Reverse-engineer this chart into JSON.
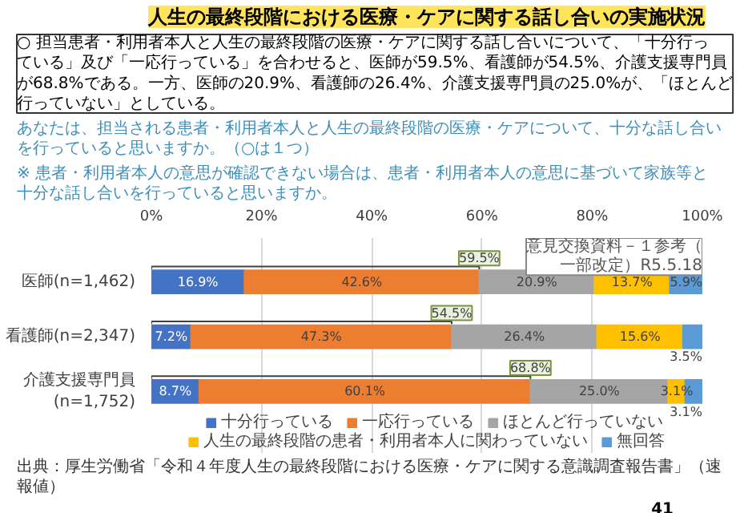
{
  "chart_data": {
    "type": "bar",
    "orientation": "horizontal",
    "stacked": true,
    "title": "人生の最終段階における医療・ケアに関する話し合いの実施状況",
    "subtitle": "あなたは、担当される患者・利用者本人と人生の最終段階の医療・ケアについて、十分な話し合いを行っていると思いますか。（○は１つ）",
    "categories": [
      "医師(n=1,462)",
      "看護師(n=2,347)",
      "介護支援専門員\n(n=1,752)"
    ],
    "series": [
      {
        "name": "十分行っている",
        "color": "#4472c4",
        "values": [
          16.9,
          7.2,
          8.7
        ],
        "value_labels": [
          "16.9%",
          "7.2%",
          "8.7%"
        ]
      },
      {
        "name": "一応行っている",
        "color": "#ed7d31",
        "values": [
          42.6,
          47.3,
          60.1
        ],
        "value_labels": [
          "42.6%",
          "47.3%",
          "60.1%"
        ]
      },
      {
        "name": "ほとんど行っていない",
        "color": "#a5a5a5",
        "values": [
          20.9,
          26.4,
          25.0
        ],
        "value_labels": [
          "20.9%",
          "26.4%",
          "25.0%"
        ]
      },
      {
        "name": "人生の最終段階の患者・利用者本人に関わっていない",
        "color": "#ffc000",
        "values": [
          13.7,
          15.6,
          3.1
        ],
        "value_labels": [
          "13.7%",
          "15.6%",
          "3.1%"
        ]
      },
      {
        "name": "無回答",
        "color": "#5b9bd5",
        "values": [
          5.9,
          3.5,
          3.1
        ],
        "value_labels": [
          "5.9%",
          "3.5%",
          "3.1%"
        ]
      }
    ],
    "xlim": [
      0,
      100
    ],
    "xticks": [
      {
        "value": 0,
        "label": "0%"
      },
      {
        "value": 20,
        "label": "20%"
      },
      {
        "value": 40,
        "label": "40%"
      },
      {
        "value": 60,
        "label": "60%"
      },
      {
        "value": 80,
        "label": "80%"
      },
      {
        "value": 100,
        "label": "100%"
      }
    ],
    "grid": "x",
    "legend": "bottom",
    "annotations": [
      "○ 担当患者・利用者本人と人生の最終段階の医療・ケアに関する話し合いについて、「十分行っている」及び「一応行っている」を合わせると、医師が59.5%、看護師が54.5%、介護支援専門員が68.8%である。一方、医師の20.9%、看護師の26.4%、介護支援専門員の25.0%が、「ほとんど行っていない」としている。",
      "※ 患者・利用者本人の意思が確認できない場合は、患者・利用者本人の意思に基づいて家族等と十分な話し合いを行っていると思いますか。",
      {
        "text": "59.5%",
        "x": 59.5,
        "y": "医師(n=1,462)"
      },
      {
        "text": "54.5%",
        "x": 54.5,
        "y": "看護師(n=2,347)"
      },
      {
        "text": "68.8%",
        "x": 68.8,
        "y": "介護支援専門員\n(n=1,752)"
      },
      "出典：厚生労働省「令和４年度人生の最終段階における医療・ケアに関する意識調査報告書」（速報値）",
      "41",
      "意見交換資料－１参考（一部改定）R5.5.18"
    ]
  }
}
